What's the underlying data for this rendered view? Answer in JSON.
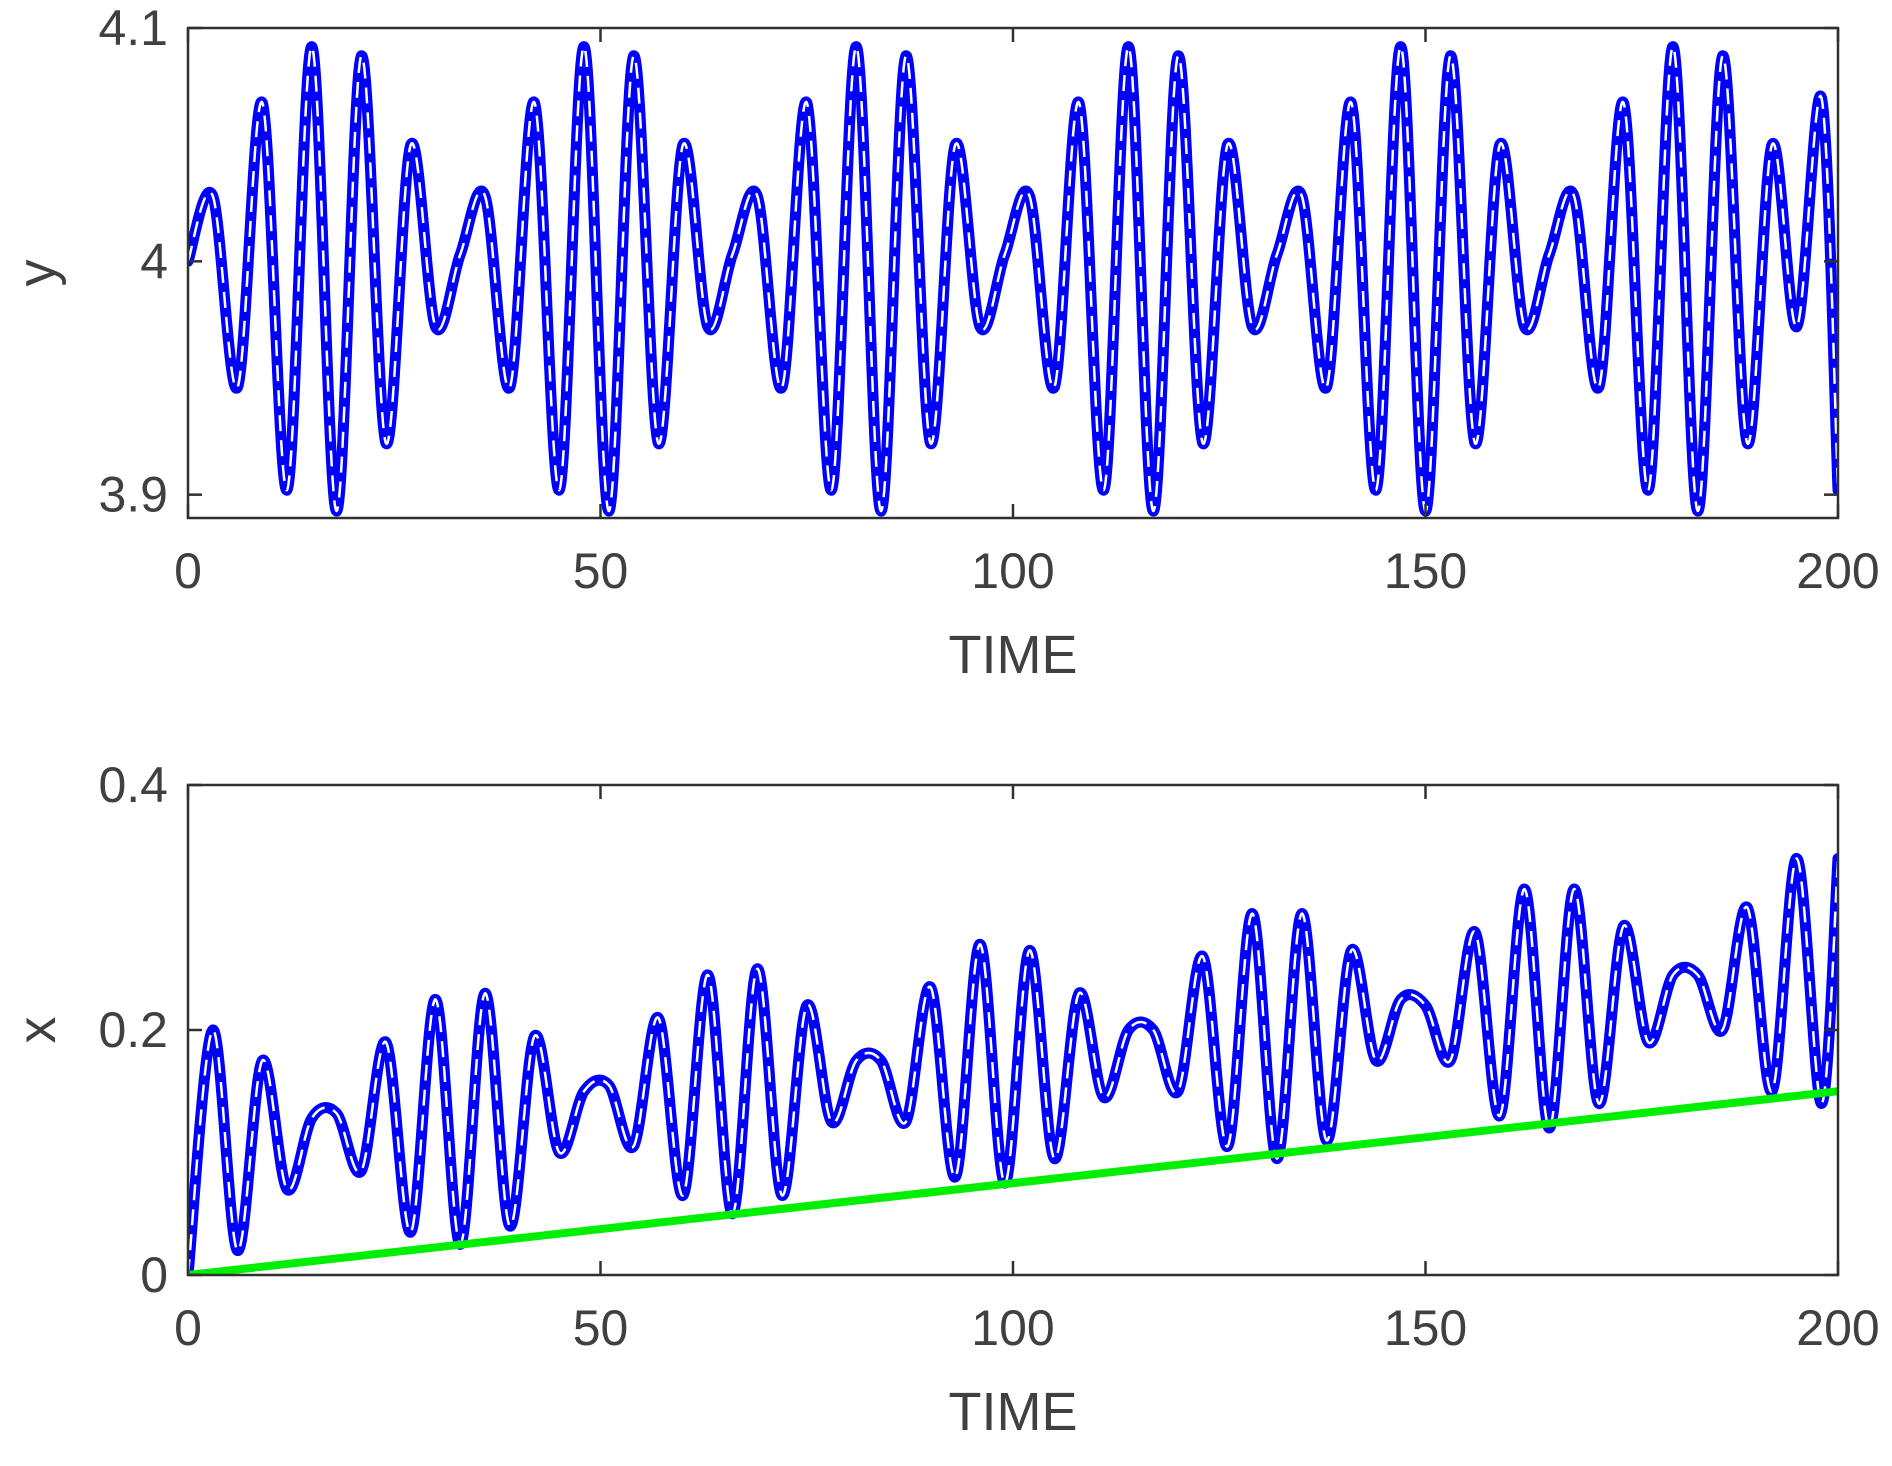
{
  "chart_data": [
    {
      "type": "line",
      "xlabel": "TIME",
      "ylabel": "y",
      "xlim": [
        0,
        200
      ],
      "ylim": [
        3.89,
        4.1
      ],
      "xticks": [
        0,
        50,
        100,
        150,
        200
      ],
      "xtick_labels": [
        "0",
        "50",
        "100",
        "150",
        "200"
      ],
      "yticks": [
        3.9,
        4.0,
        4.1
      ],
      "ytick_labels": [
        "3.9",
        "4",
        "4.1"
      ],
      "grid": false,
      "series": [
        {
          "style": "solid",
          "color": "#0000ff",
          "x": [
            0,
            3,
            6,
            9,
            12,
            15,
            18,
            21,
            24,
            27,
            30,
            33,
            36,
            39,
            42,
            45,
            48,
            51,
            54,
            57,
            60,
            63,
            66,
            69,
            72,
            75,
            78,
            81,
            84,
            87,
            90,
            93,
            96,
            99,
            102,
            105,
            108,
            111,
            114,
            117,
            120,
            123,
            126,
            129,
            132,
            135,
            138,
            141,
            144,
            147,
            150,
            153,
            156,
            159,
            162,
            165,
            168,
            171,
            174,
            177,
            180,
            183,
            186,
            189,
            192,
            195,
            198,
            200
          ],
          "y": [
            4.0,
            4.028,
            3.946,
            4.068,
            3.902,
            4.092,
            3.893,
            4.088,
            3.922,
            4.05,
            3.972,
            4.003,
            4.028,
            3.946,
            4.068,
            3.902,
            4.092,
            3.893,
            4.088,
            3.922,
            4.05,
            3.972,
            4.003,
            4.028,
            3.946,
            4.068,
            3.902,
            4.092,
            3.893,
            4.088,
            3.922,
            4.05,
            3.972,
            4.003,
            4.028,
            3.946,
            4.068,
            3.902,
            4.092,
            3.893,
            4.088,
            3.922,
            4.05,
            3.972,
            4.003,
            4.028,
            3.946,
            4.068,
            3.902,
            4.092,
            3.893,
            4.088,
            3.922,
            4.05,
            3.972,
            4.003,
            4.028,
            3.946,
            4.068,
            3.902,
            4.092,
            3.893,
            4.088,
            3.922,
            4.05,
            3.972,
            4.07,
            3.902
          ]
        },
        {
          "style": "dashed",
          "color": "#ffffff",
          "x": [
            0,
            3,
            6,
            9,
            12,
            15,
            18,
            21,
            24,
            27,
            30,
            33,
            36,
            39,
            42,
            45,
            48,
            51,
            54,
            57,
            60,
            63,
            66,
            69,
            72,
            75,
            78,
            81,
            84,
            87,
            90,
            93,
            96,
            99,
            102,
            105,
            108,
            111,
            114,
            117,
            120,
            123,
            126,
            129,
            132,
            135,
            138,
            141,
            144,
            147,
            150,
            153,
            156,
            159,
            162,
            165,
            168,
            171,
            174,
            177,
            180,
            183,
            186,
            189,
            192,
            195,
            198,
            200
          ],
          "y": [
            4.0,
            4.028,
            3.946,
            4.068,
            3.902,
            4.092,
            3.893,
            4.088,
            3.922,
            4.05,
            3.972,
            4.003,
            4.028,
            3.946,
            4.068,
            3.902,
            4.092,
            3.893,
            4.088,
            3.922,
            4.05,
            3.972,
            4.003,
            4.028,
            3.946,
            4.068,
            3.902,
            4.092,
            3.893,
            4.088,
            3.922,
            4.05,
            3.972,
            4.003,
            4.028,
            3.946,
            4.068,
            3.902,
            4.092,
            3.893,
            4.088,
            3.922,
            4.05,
            3.972,
            4.003,
            4.028,
            3.946,
            4.068,
            3.902,
            4.092,
            3.893,
            4.088,
            3.922,
            4.05,
            3.972,
            4.003,
            4.028,
            3.946,
            4.068,
            3.902,
            4.092,
            3.893,
            4.088,
            3.922,
            4.05,
            3.972,
            4.07,
            3.902
          ]
        }
      ]
    },
    {
      "type": "line",
      "xlabel": "TIME",
      "ylabel": "x",
      "xlim": [
        0,
        200
      ],
      "ylim": [
        0,
        0.4
      ],
      "xticks": [
        0,
        50,
        100,
        150,
        200
      ],
      "xtick_labels": [
        "0",
        "50",
        "100",
        "150",
        "200"
      ],
      "yticks": [
        0,
        0.2,
        0.4
      ],
      "ytick_labels": [
        "0",
        "0.2",
        "0.4"
      ],
      "grid": false,
      "series": [
        {
          "style": "solid",
          "color": "#0000ff",
          "x": [
            0,
            3,
            6,
            9,
            12,
            15,
            18,
            21,
            24,
            27,
            30,
            33,
            36,
            39,
            42,
            45,
            48,
            51,
            54,
            57,
            60,
            63,
            66,
            69,
            72,
            75,
            78,
            81,
            84,
            87,
            90,
            93,
            96,
            99,
            102,
            105,
            108,
            111,
            114,
            117,
            120,
            123,
            126,
            129,
            132,
            135,
            138,
            141,
            144,
            147,
            150,
            153,
            156,
            159,
            162,
            165,
            168,
            171,
            174,
            177,
            180,
            183,
            186,
            189,
            192,
            195,
            198,
            200
          ],
          "y": [
            0.0,
            0.2,
            0.02,
            0.175,
            0.07,
            0.128,
            0.132,
            0.085,
            0.19,
            0.035,
            0.225,
            0.025,
            0.23,
            0.04,
            0.195,
            0.1,
            0.15,
            0.155,
            0.105,
            0.21,
            0.065,
            0.245,
            0.05,
            0.25,
            0.065,
            0.22,
            0.125,
            0.175,
            0.175,
            0.125,
            0.235,
            0.08,
            0.27,
            0.075,
            0.265,
            0.095,
            0.23,
            0.145,
            0.2,
            0.2,
            0.15,
            0.26,
            0.105,
            0.295,
            0.095,
            0.295,
            0.11,
            0.265,
            0.175,
            0.225,
            0.22,
            0.175,
            0.28,
            0.13,
            0.315,
            0.12,
            0.315,
            0.14,
            0.285,
            0.19,
            0.245,
            0.245,
            0.2,
            0.3,
            0.15,
            0.34,
            0.14,
            0.34
          ]
        },
        {
          "style": "dashed",
          "color": "#ffffff",
          "x": [
            0,
            3,
            6,
            9,
            12,
            15,
            18,
            21,
            24,
            27,
            30,
            33,
            36,
            39,
            42,
            45,
            48,
            51,
            54,
            57,
            60,
            63,
            66,
            69,
            72,
            75,
            78,
            81,
            84,
            87,
            90,
            93,
            96,
            99,
            102,
            105,
            108,
            111,
            114,
            117,
            120,
            123,
            126,
            129,
            132,
            135,
            138,
            141,
            144,
            147,
            150,
            153,
            156,
            159,
            162,
            165,
            168,
            171,
            174,
            177,
            180,
            183,
            186,
            189,
            192,
            195,
            198,
            200
          ],
          "y": [
            0.0,
            0.2,
            0.02,
            0.175,
            0.07,
            0.128,
            0.132,
            0.085,
            0.19,
            0.035,
            0.225,
            0.025,
            0.23,
            0.04,
            0.195,
            0.1,
            0.15,
            0.155,
            0.105,
            0.21,
            0.065,
            0.245,
            0.05,
            0.25,
            0.065,
            0.22,
            0.125,
            0.175,
            0.175,
            0.125,
            0.235,
            0.08,
            0.27,
            0.075,
            0.265,
            0.095,
            0.23,
            0.145,
            0.2,
            0.2,
            0.15,
            0.26,
            0.105,
            0.295,
            0.095,
            0.295,
            0.11,
            0.265,
            0.175,
            0.225,
            0.22,
            0.175,
            0.28,
            0.13,
            0.315,
            0.12,
            0.315,
            0.14,
            0.285,
            0.19,
            0.245,
            0.245,
            0.2,
            0.3,
            0.15,
            0.34,
            0.14,
            0.34
          ]
        },
        {
          "style": "solid",
          "color": "#00ee00",
          "x": [
            0,
            200
          ],
          "y": [
            0.0,
            0.15
          ]
        }
      ]
    }
  ]
}
